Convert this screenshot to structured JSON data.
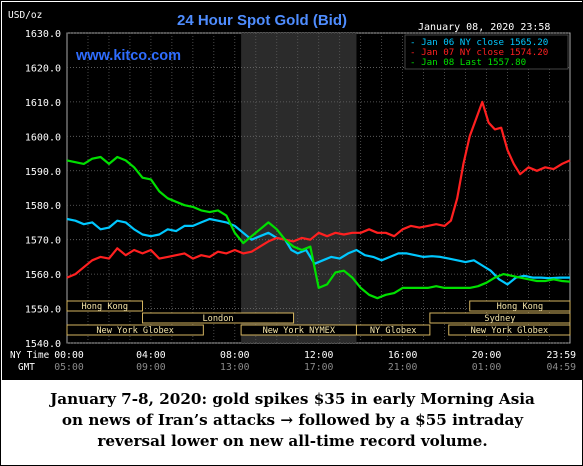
{
  "chart_data": {
    "type": "line",
    "title": "24 Hour Spot Gold (Bid)",
    "watermark": "www.kitco.com",
    "y_unit_label": "USD/oz",
    "timestamp": "January 08, 2020 23:58",
    "ylim": [
      1540,
      1630
    ],
    "yticks": [
      "1630.0",
      "1620.0",
      "1610.0",
      "1600.0",
      "1590.0",
      "1580.0",
      "1570.0",
      "1560.0",
      "1550.0",
      "1540.0"
    ],
    "x_row1_label": "NY Time",
    "x_row2_label": "GMT",
    "x_ny_ticks": [
      "00:00",
      "04:00",
      "08:00",
      "12:00",
      "16:00",
      "20:00",
      "23:59"
    ],
    "x_gmt_ticks": [
      "05:00",
      "09:00",
      "13:00",
      "17:00",
      "21:00",
      "01:00",
      "04:59"
    ],
    "grid": true,
    "legend_position": "top-right",
    "shaded_band_hours": [
      8.3,
      13.8
    ],
    "sessions": [
      {
        "label": "Hong Kong",
        "start": 0,
        "end": 3.6,
        "row": 1
      },
      {
        "label": "London",
        "start": 3.6,
        "end": 10.8,
        "row": 2
      },
      {
        "label": "New York Globex",
        "start": 0,
        "end": 6.5,
        "row": 3
      },
      {
        "label": "New York NYMEX",
        "start": 8.3,
        "end": 13.8,
        "row": 3
      },
      {
        "label": "NY Globex",
        "start": 13.8,
        "end": 17.3,
        "row": 3
      },
      {
        "label": "Hong Kong",
        "start": 19.2,
        "end": 23.98,
        "row": 1
      },
      {
        "label": "Sydney",
        "start": 17.3,
        "end": 23.98,
        "row": 2
      },
      {
        "label": "New York Globex",
        "start": 18.2,
        "end": 23.98,
        "row": 3
      }
    ],
    "series": [
      {
        "name": "Jan 06 NY close 1565.20",
        "color": "#00c8ff",
        "points": [
          [
            0,
            1576
          ],
          [
            0.4,
            1575.5
          ],
          [
            0.8,
            1574.5
          ],
          [
            1.2,
            1575
          ],
          [
            1.6,
            1573
          ],
          [
            2.0,
            1573.5
          ],
          [
            2.4,
            1575.5
          ],
          [
            2.8,
            1575
          ],
          [
            3.2,
            1573
          ],
          [
            3.6,
            1571.5
          ],
          [
            4.0,
            1571
          ],
          [
            4.4,
            1571.5
          ],
          [
            4.8,
            1573
          ],
          [
            5.2,
            1572.5
          ],
          [
            5.6,
            1574
          ],
          [
            6.0,
            1574
          ],
          [
            6.4,
            1575
          ],
          [
            6.8,
            1576
          ],
          [
            7.2,
            1575.5
          ],
          [
            7.6,
            1575
          ],
          [
            8.0,
            1574
          ],
          [
            8.4,
            1572
          ],
          [
            8.8,
            1570
          ],
          [
            9.2,
            1571
          ],
          [
            9.6,
            1572
          ],
          [
            10.0,
            1570.5
          ],
          [
            10.4,
            1570
          ],
          [
            10.7,
            1567
          ],
          [
            11.0,
            1566
          ],
          [
            11.4,
            1567
          ],
          [
            11.8,
            1563
          ],
          [
            12.2,
            1564
          ],
          [
            12.6,
            1565
          ],
          [
            13.0,
            1564.5
          ],
          [
            13.4,
            1566
          ],
          [
            13.8,
            1567
          ],
          [
            14.2,
            1565.5
          ],
          [
            14.6,
            1565
          ],
          [
            15.0,
            1564
          ],
          [
            15.4,
            1565
          ],
          [
            15.8,
            1566
          ],
          [
            16.2,
            1566
          ],
          [
            16.6,
            1565.5
          ],
          [
            17.0,
            1565
          ],
          [
            17.4,
            1565.2
          ],
          [
            17.8,
            1565
          ],
          [
            18.2,
            1564.5
          ],
          [
            18.6,
            1564
          ],
          [
            19.0,
            1563.5
          ],
          [
            19.4,
            1564
          ],
          [
            19.8,
            1562.5
          ],
          [
            20.2,
            1561
          ],
          [
            20.6,
            1558.5
          ],
          [
            21.0,
            1557
          ],
          [
            21.4,
            1559
          ],
          [
            21.8,
            1559.5
          ],
          [
            22.2,
            1559
          ],
          [
            22.6,
            1559
          ],
          [
            23.0,
            1558.8
          ],
          [
            23.5,
            1559
          ],
          [
            23.98,
            1559
          ]
        ]
      },
      {
        "name": "Jan 07 NY close 1574.20",
        "color": "#ff2020",
        "points": [
          [
            0,
            1559
          ],
          [
            0.4,
            1560
          ],
          [
            0.8,
            1562
          ],
          [
            1.2,
            1564
          ],
          [
            1.6,
            1565
          ],
          [
            2.0,
            1564.5
          ],
          [
            2.4,
            1567.5
          ],
          [
            2.8,
            1565.5
          ],
          [
            3.2,
            1567
          ],
          [
            3.6,
            1566
          ],
          [
            4.0,
            1567
          ],
          [
            4.4,
            1564.5
          ],
          [
            4.8,
            1565
          ],
          [
            5.2,
            1565.5
          ],
          [
            5.6,
            1566
          ],
          [
            6.0,
            1564.5
          ],
          [
            6.4,
            1565.5
          ],
          [
            6.8,
            1565
          ],
          [
            7.2,
            1566.5
          ],
          [
            7.6,
            1566
          ],
          [
            8.0,
            1567
          ],
          [
            8.4,
            1566
          ],
          [
            8.8,
            1566.5
          ],
          [
            9.2,
            1568
          ],
          [
            9.6,
            1569.5
          ],
          [
            10.0,
            1570.5
          ],
          [
            10.4,
            1570
          ],
          [
            10.8,
            1569.5
          ],
          [
            11.2,
            1570.5
          ],
          [
            11.6,
            1570
          ],
          [
            12.0,
            1572
          ],
          [
            12.4,
            1571
          ],
          [
            12.8,
            1572
          ],
          [
            13.2,
            1571.5
          ],
          [
            13.6,
            1572
          ],
          [
            14.0,
            1572
          ],
          [
            14.4,
            1573
          ],
          [
            14.8,
            1572
          ],
          [
            15.2,
            1572
          ],
          [
            15.6,
            1571
          ],
          [
            16.0,
            1573
          ],
          [
            16.4,
            1574
          ],
          [
            16.8,
            1573.5
          ],
          [
            17.2,
            1574
          ],
          [
            17.6,
            1574.5
          ],
          [
            18.0,
            1574
          ],
          [
            18.3,
            1575.5
          ],
          [
            18.6,
            1582
          ],
          [
            18.9,
            1592
          ],
          [
            19.2,
            1600
          ],
          [
            19.5,
            1605
          ],
          [
            19.8,
            1610
          ],
          [
            20.1,
            1604
          ],
          [
            20.4,
            1602
          ],
          [
            20.7,
            1602.5
          ],
          [
            21.0,
            1596
          ],
          [
            21.3,
            1592
          ],
          [
            21.6,
            1589
          ],
          [
            22.0,
            1591
          ],
          [
            22.4,
            1590
          ],
          [
            22.8,
            1591
          ],
          [
            23.2,
            1590.5
          ],
          [
            23.6,
            1592
          ],
          [
            23.98,
            1593
          ]
        ]
      },
      {
        "name": "Jan 08 Last 1557.80",
        "color": "#00e000",
        "points": [
          [
            0,
            1593
          ],
          [
            0.4,
            1592.5
          ],
          [
            0.8,
            1592
          ],
          [
            1.2,
            1593.5
          ],
          [
            1.6,
            1594
          ],
          [
            2.0,
            1592
          ],
          [
            2.4,
            1594
          ],
          [
            2.8,
            1593
          ],
          [
            3.2,
            1591
          ],
          [
            3.6,
            1588
          ],
          [
            4.0,
            1587.5
          ],
          [
            4.4,
            1584
          ],
          [
            4.8,
            1582
          ],
          [
            5.2,
            1581
          ],
          [
            5.6,
            1580
          ],
          [
            6.0,
            1579.5
          ],
          [
            6.4,
            1578.5
          ],
          [
            6.8,
            1578
          ],
          [
            7.2,
            1578.5
          ],
          [
            7.6,
            1577
          ],
          [
            8.0,
            1572
          ],
          [
            8.4,
            1569
          ],
          [
            8.8,
            1571
          ],
          [
            9.2,
            1573
          ],
          [
            9.6,
            1575
          ],
          [
            10.0,
            1573
          ],
          [
            10.4,
            1570
          ],
          [
            10.8,
            1568
          ],
          [
            11.2,
            1567
          ],
          [
            11.6,
            1568
          ],
          [
            12.0,
            1556
          ],
          [
            12.4,
            1557
          ],
          [
            12.8,
            1560.5
          ],
          [
            13.2,
            1561
          ],
          [
            13.6,
            1559
          ],
          [
            14.0,
            1556
          ],
          [
            14.4,
            1554
          ],
          [
            14.8,
            1553
          ],
          [
            15.2,
            1554
          ],
          [
            15.6,
            1554.5
          ],
          [
            16.0,
            1556
          ],
          [
            16.4,
            1556
          ],
          [
            16.8,
            1556
          ],
          [
            17.2,
            1556
          ],
          [
            17.6,
            1556.5
          ],
          [
            18.0,
            1556
          ],
          [
            18.4,
            1556
          ],
          [
            18.8,
            1556
          ],
          [
            19.2,
            1556
          ],
          [
            19.6,
            1556.5
          ],
          [
            20.0,
            1557.5
          ],
          [
            20.4,
            1559
          ],
          [
            20.8,
            1560
          ],
          [
            21.2,
            1559.5
          ],
          [
            21.6,
            1559
          ],
          [
            22.0,
            1558.5
          ],
          [
            22.4,
            1558
          ],
          [
            22.8,
            1558
          ],
          [
            23.2,
            1558.5
          ],
          [
            23.6,
            1558
          ],
          [
            23.98,
            1557.8
          ]
        ]
      }
    ]
  },
  "caption": {
    "line1": "January 7-8, 2020: gold spikes $35 in early Morning Asia",
    "line2": "on news of Iran’s attacks → followed by a $55 intraday",
    "line3": "reversal lower on new all-time record volume."
  }
}
